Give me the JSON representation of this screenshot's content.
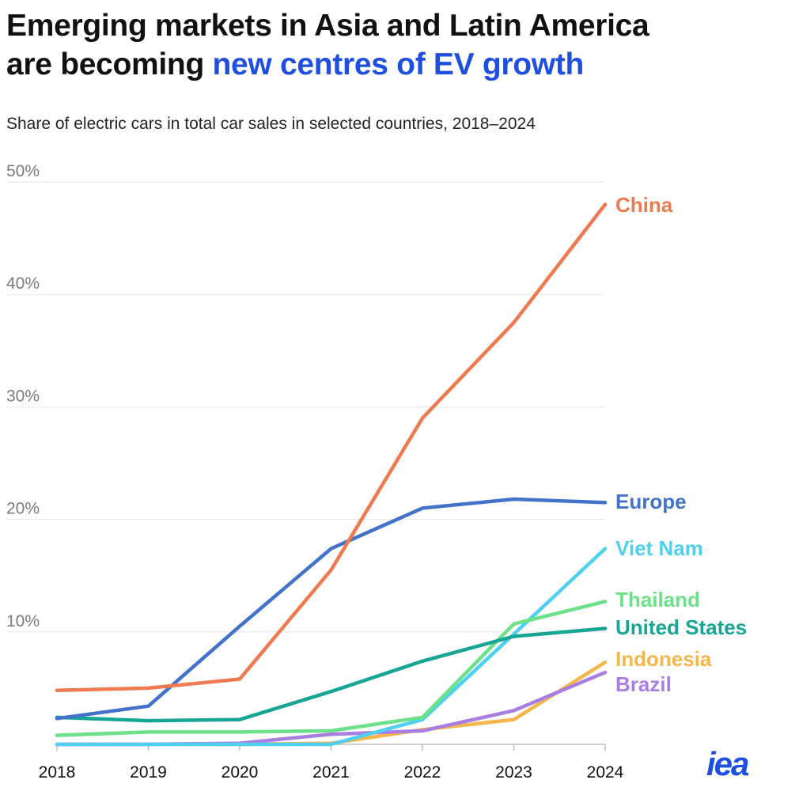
{
  "header": {
    "title_line1": "Emerging markets in Asia and Latin America",
    "title_line2_prefix": "are becoming ",
    "title_line2_highlight": "new centres of EV growth",
    "subtitle": "Share of electric cars in total car sales in selected countries, 2018–2024"
  },
  "logo": {
    "text": "iea",
    "color": "#1f4fe0"
  },
  "chart_data": {
    "type": "line",
    "title": "Share of electric cars in total car sales in selected countries, 2018–2024",
    "xlabel": "",
    "ylabel": "",
    "x": [
      "2018",
      "2019",
      "2020",
      "2021",
      "2022",
      "2023",
      "2024"
    ],
    "ylim": [
      0,
      50
    ],
    "yticks": [
      10,
      20,
      30,
      40,
      50
    ],
    "ytick_labels": [
      "10%",
      "20%",
      "30%",
      "40%",
      "50%"
    ],
    "grid": true,
    "series": [
      {
        "name": "China",
        "color": "#f07a50",
        "values": [
          4.8,
          5.0,
          5.8,
          15.5,
          29.0,
          37.5,
          48.0
        ]
      },
      {
        "name": "Europe",
        "color": "#4272c9",
        "values": [
          2.3,
          3.4,
          10.5,
          17.4,
          21.0,
          21.8,
          21.5
        ]
      },
      {
        "name": "Viet Nam",
        "color": "#4fd0f0",
        "values": [
          0.0,
          0.0,
          0.0,
          0.0,
          2.2,
          9.8,
          17.4
        ]
      },
      {
        "name": "Thailand",
        "color": "#6de08a",
        "values": [
          0.8,
          1.1,
          1.1,
          1.2,
          2.4,
          10.7,
          12.7
        ]
      },
      {
        "name": "United States",
        "color": "#17a595",
        "values": [
          2.4,
          2.1,
          2.2,
          4.7,
          7.4,
          9.6,
          10.3
        ]
      },
      {
        "name": "Indonesia",
        "color": "#f5b64c",
        "values": [
          0.0,
          0.0,
          0.0,
          0.1,
          1.3,
          2.2,
          7.3
        ]
      },
      {
        "name": "Brazil",
        "color": "#a97ee3",
        "values": [
          0.0,
          0.0,
          0.1,
          0.9,
          1.2,
          3.0,
          6.4
        ]
      }
    ]
  }
}
